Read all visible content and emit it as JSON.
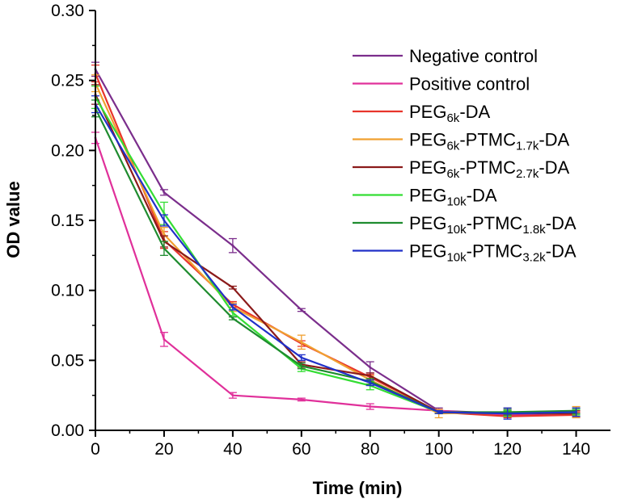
{
  "chart_data": {
    "type": "line",
    "title": "",
    "xlabel": "Time (min)",
    "ylabel": "OD value",
    "xlim": [
      0,
      150
    ],
    "ylim": [
      0,
      0.3
    ],
    "x_ticks": [
      0,
      20,
      40,
      60,
      80,
      100,
      120,
      140
    ],
    "x_tick_labels": [
      "0",
      "20",
      "40",
      "60",
      "80",
      "100",
      "120",
      "140"
    ],
    "y_ticks": [
      0,
      0.05,
      0.1,
      0.15,
      0.2,
      0.25,
      0.3
    ],
    "y_tick_labels": [
      "0.00",
      "0.05",
      "0.10",
      "0.15",
      "0.20",
      "0.25",
      "0.30"
    ],
    "legend_position": "top-right",
    "x": [
      0,
      20,
      40,
      60,
      80,
      100,
      120,
      140
    ],
    "series": [
      {
        "name": "Negative control",
        "label_parts": [
          {
            "t": "Negative control",
            "sub": false
          }
        ],
        "color": "#7B2E8C",
        "values": [
          0.258,
          0.17,
          0.132,
          0.086,
          0.045,
          0.014,
          0.012,
          0.013
        ],
        "errors": [
          0.005,
          0.002,
          0.005,
          0.001,
          0.004,
          0.002,
          0.003,
          0.002
        ]
      },
      {
        "name": "Positive control",
        "label_parts": [
          {
            "t": "Positive control",
            "sub": false
          }
        ],
        "color": "#E0309A",
        "values": [
          0.209,
          0.065,
          0.025,
          0.022,
          0.017,
          0.014,
          0.011,
          0.011
        ],
        "errors": [
          0.004,
          0.005,
          0.002,
          0.001,
          0.002,
          0.001,
          0.001,
          0.001
        ]
      },
      {
        "name": "PEG6k-DA",
        "label_parts": [
          {
            "t": "PEG",
            "sub": false
          },
          {
            "t": "6k",
            "sub": true
          },
          {
            "t": "-DA",
            "sub": false
          }
        ],
        "color": "#E8352B",
        "values": [
          0.255,
          0.136,
          0.09,
          0.062,
          0.038,
          0.013,
          0.01,
          0.011
        ],
        "errors": [
          0.006,
          0.006,
          0.002,
          0.002,
          0.002,
          0.001,
          0.001,
          0.002
        ]
      },
      {
        "name": "PEG6k-PTMC1.7k-DA",
        "label_parts": [
          {
            "t": "PEG",
            "sub": false
          },
          {
            "t": "6k",
            "sub": true
          },
          {
            "t": "-PTMC",
            "sub": false
          },
          {
            "t": "1.7k",
            "sub": true
          },
          {
            "t": "-DA",
            "sub": false
          }
        ],
        "color": "#F0A030",
        "values": [
          0.248,
          0.14,
          0.088,
          0.063,
          0.036,
          0.012,
          0.013,
          0.013
        ],
        "errors": [
          0.006,
          0.005,
          0.003,
          0.005,
          0.003,
          0.003,
          0.003,
          0.004
        ]
      },
      {
        "name": "PEG6k-PTMC2.7k-DA",
        "label_parts": [
          {
            "t": "PEG",
            "sub": false
          },
          {
            "t": "6k",
            "sub": true
          },
          {
            "t": "-PTMC",
            "sub": false
          },
          {
            "t": "2.7k",
            "sub": true
          },
          {
            "t": "-DA",
            "sub": false
          }
        ],
        "color": "#8B1A1A",
        "values": [
          0.24,
          0.135,
          0.102,
          0.047,
          0.039,
          0.013,
          0.012,
          0.012
        ],
        "errors": [
          0.007,
          0.004,
          0.001,
          0.002,
          0.002,
          0.001,
          0.002,
          0.002
        ]
      },
      {
        "name": "PEG10k-DA",
        "label_parts": [
          {
            "t": "PEG",
            "sub": false
          },
          {
            "t": "10k",
            "sub": true
          },
          {
            "t": "-DA",
            "sub": false
          }
        ],
        "color": "#33DD33",
        "values": [
          0.238,
          0.155,
          0.084,
          0.044,
          0.032,
          0.013,
          0.012,
          0.013
        ],
        "errors": [
          0.008,
          0.008,
          0.002,
          0.002,
          0.003,
          0.001,
          0.002,
          0.002
        ]
      },
      {
        "name": "PEG10k-PTMC1.8k-DA",
        "label_parts": [
          {
            "t": "PEG",
            "sub": false
          },
          {
            "t": "10k",
            "sub": true
          },
          {
            "t": "-PTMC",
            "sub": false
          },
          {
            "t": "1.8k",
            "sub": true
          },
          {
            "t": "-DA",
            "sub": false
          }
        ],
        "color": "#1F8C2F",
        "values": [
          0.23,
          0.13,
          0.08,
          0.046,
          0.035,
          0.013,
          0.013,
          0.014
        ],
        "errors": [
          0.006,
          0.005,
          0.001,
          0.002,
          0.002,
          0.001,
          0.002,
          0.002
        ]
      },
      {
        "name": "PEG10k-PTMC3.2k-DA",
        "label_parts": [
          {
            "t": "PEG",
            "sub": false
          },
          {
            "t": "10k",
            "sub": true
          },
          {
            "t": "-PTMC",
            "sub": false
          },
          {
            "t": "3.2k",
            "sub": true
          },
          {
            "t": "-DA",
            "sub": false
          }
        ],
        "color": "#2030C8",
        "values": [
          0.233,
          0.15,
          0.088,
          0.052,
          0.034,
          0.013,
          0.012,
          0.013
        ],
        "errors": [
          0.006,
          0.004,
          0.002,
          0.002,
          0.002,
          0.001,
          0.004,
          0.003
        ]
      }
    ]
  }
}
